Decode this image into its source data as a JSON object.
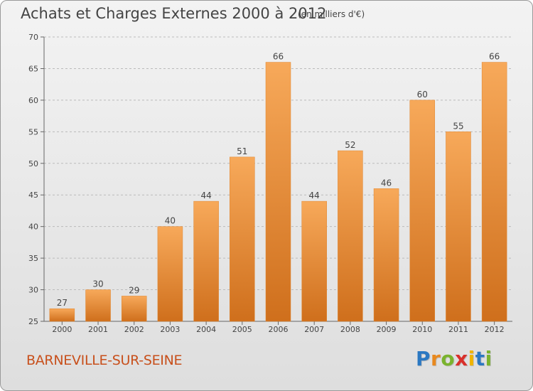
{
  "header": {
    "title": "Achats et Charges Externes 2000 à 2012",
    "subtitle": "(en milliers d'€)"
  },
  "footer": {
    "city": "BARNEVILLE-SUR-SEINE",
    "logo_letters": [
      {
        "ch": "P",
        "color": "#2b78c2"
      },
      {
        "ch": "r",
        "color": "#e8891f"
      },
      {
        "ch": "o",
        "color": "#7ab32e"
      },
      {
        "ch": "x",
        "color": "#d9302b"
      },
      {
        "ch": "i",
        "color": "#f0b400"
      },
      {
        "ch": "t",
        "color": "#2b78c2"
      },
      {
        "ch": "i",
        "color": "#7ab32e"
      }
    ]
  },
  "colors": {
    "bar_light": "#f7a95a",
    "bar_dark": "#cf6f1c",
    "bar_stroke": "#e0852e",
    "grid": "#bbbbbb",
    "text": "#444444"
  },
  "chart_data": {
    "type": "bar",
    "title": "Achats et Charges Externes 2000 à 2012",
    "subtitle": "(en milliers d'€)",
    "categories": [
      "2000",
      "2001",
      "2002",
      "2003",
      "2004",
      "2005",
      "2006",
      "2007",
      "2008",
      "2009",
      "2010",
      "2011",
      "2012"
    ],
    "values": [
      27,
      30,
      29,
      40,
      44,
      51,
      66,
      44,
      52,
      46,
      60,
      55,
      66
    ],
    "ylim": [
      25,
      70
    ],
    "yticks": [
      25,
      30,
      35,
      40,
      45,
      50,
      55,
      60,
      65,
      70
    ],
    "grid": true,
    "data_labels": true
  }
}
